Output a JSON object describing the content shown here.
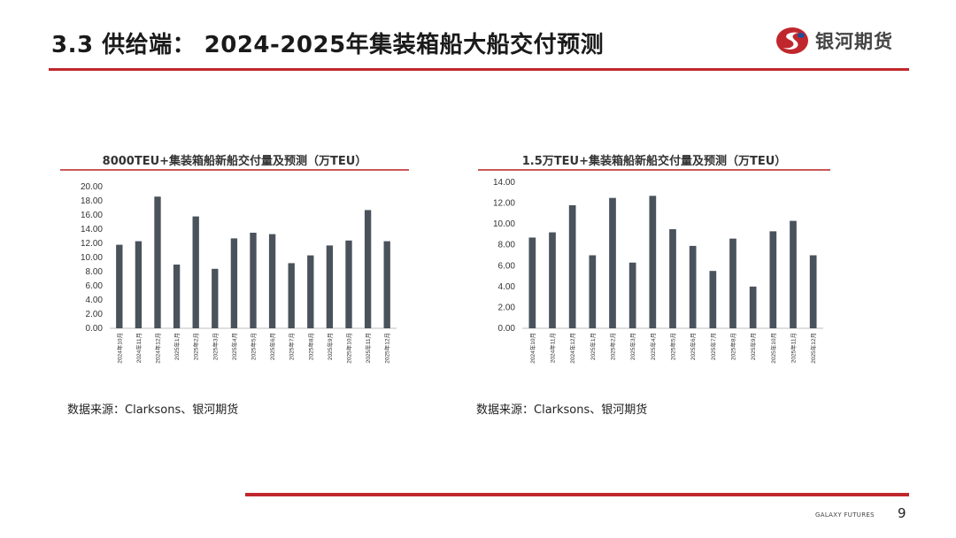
{
  "slide": {
    "title": "3.3 供给端：  2024-2025年集装箱船大船交付预测",
    "logo_text": "银河期货",
    "footer_brand": "GALAXY FUTURES",
    "page_number": "9",
    "accent_color": "#c0272d",
    "bar_color": "#4a525c"
  },
  "chart_data": [
    {
      "type": "bar",
      "title": "8000TEU+集装箱船新船交付量及预测（万TEU）",
      "categories": [
        "2024年10月",
        "2024年11月",
        "2024年12月",
        "2025年1月",
        "2025年2月",
        "2025年3月",
        "2025年4月",
        "2025年5月",
        "2025年6月",
        "2025年7月",
        "2025年8月",
        "2025年9月",
        "2025年10月",
        "2025年11月",
        "2025年12月"
      ],
      "values": [
        11.8,
        12.3,
        18.6,
        9.0,
        15.8,
        8.4,
        12.7,
        13.5,
        13.3,
        9.2,
        10.3,
        11.7,
        12.4,
        16.7,
        12.3
      ],
      "yticks": [
        "0.00",
        "2.00",
        "4.00",
        "6.00",
        "8.00",
        "10.00",
        "12.00",
        "14.00",
        "16.00",
        "18.00",
        "20.00"
      ],
      "ylim": [
        0,
        20
      ],
      "grid": false,
      "source": "数据来源：Clarksons、银河期货"
    },
    {
      "type": "bar",
      "title": "1.5万TEU+集装箱船新船交付量及预测（万TEU）",
      "categories": [
        "2024年10月",
        "2024年11月",
        "2024年12月",
        "2025年1月",
        "2025年2月",
        "2025年3月",
        "2025年4月",
        "2025年5月",
        "2025年6月",
        "2025年7月",
        "2025年8月",
        "2025年9月",
        "2025年10月",
        "2025年11月",
        "2025年12月"
      ],
      "values": [
        8.7,
        9.2,
        11.8,
        7.0,
        12.5,
        6.3,
        12.7,
        9.5,
        7.9,
        5.5,
        8.6,
        4.0,
        9.3,
        10.3,
        7.0
      ],
      "yticks": [
        "0.00",
        "2.00",
        "4.00",
        "6.00",
        "8.00",
        "10.00",
        "12.00",
        "14.00"
      ],
      "ylim": [
        0,
        14
      ],
      "grid": false,
      "source": "数据来源：Clarksons、银河期货"
    }
  ]
}
